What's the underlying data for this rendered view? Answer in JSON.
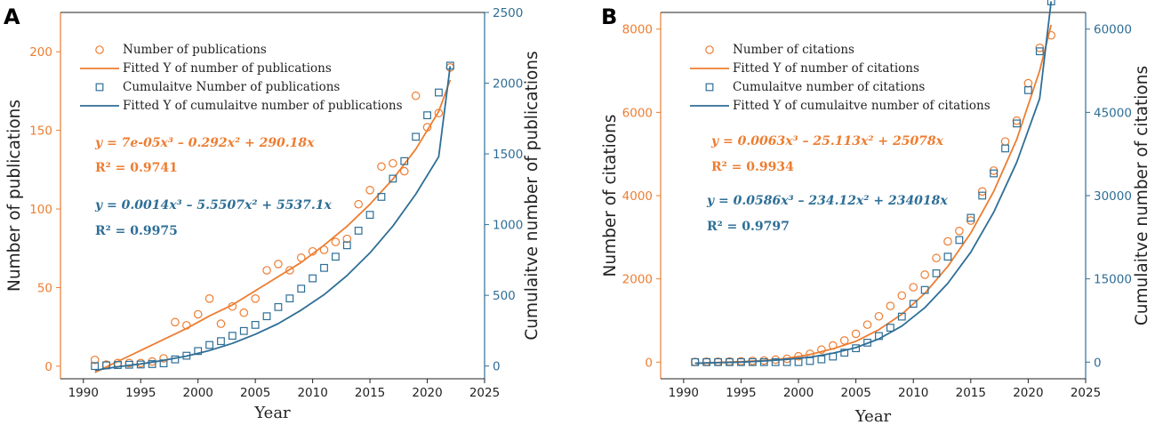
{
  "colors": {
    "orange": "#ED7D31",
    "blue": "#2E6E96",
    "axis": "#222222"
  },
  "chart_data": [
    {
      "panel": "A",
      "type": "scatter",
      "xlabel": "Year",
      "ylabel": "Number of publications",
      "ylabel_right": "Cumulaitve number of publications",
      "xlim": [
        1988,
        2025
      ],
      "ylim": [
        -8,
        225
      ],
      "ylim_right": [
        -90,
        2500
      ],
      "xticks": [
        1990,
        1995,
        2000,
        2005,
        2010,
        2015,
        2020,
        2025
      ],
      "yticks": [
        0,
        50,
        100,
        150,
        200
      ],
      "yticks_right": [
        0,
        500,
        1000,
        1500,
        2000,
        2500
      ],
      "legend": [
        "Number of publications",
        "Fitted Y of number of publications",
        "Cumulaitve Number of publications",
        "Fitted Y of cumulaitve number of publications"
      ],
      "eq_left": "y = 7e-05x³ – 0.292x² + 290.18x",
      "r2_left": "R² = 0.9741",
      "eq_right": "y = 0.0014x³ – 5.5507x² + 5537.1x",
      "r2_right": "R² = 0.9975",
      "series": [
        {
          "name": "Number of publications",
          "axis": "left",
          "marker": "circle",
          "x": [
            1991,
            1992,
            1993,
            1994,
            1995,
            1996,
            1997,
            1998,
            1999,
            2000,
            2001,
            2002,
            2003,
            2004,
            2005,
            2006,
            2007,
            2008,
            2009,
            2010,
            2011,
            2012,
            2013,
            2014,
            2015,
            2016,
            2017,
            2018,
            2019,
            2020,
            2021,
            2022
          ],
          "y": [
            4,
            1,
            2,
            2,
            2,
            3,
            5,
            28,
            26,
            33,
            43,
            27,
            38,
            34,
            43,
            61,
            65,
            61,
            69,
            73,
            74,
            79,
            81,
            103,
            112,
            127,
            129,
            124,
            172,
            152,
            161,
            190
          ]
        },
        {
          "name": "Fitted Y of number of publications",
          "axis": "left",
          "line": "solid",
          "x": [
            1991,
            1993,
            1995,
            1997,
            1999,
            2001,
            2003,
            2005,
            2007,
            2009,
            2011,
            2013,
            2015,
            2017,
            2019,
            2021,
            2022
          ],
          "y": [
            -4,
            3,
            10,
            17,
            24,
            32,
            39,
            48,
            57,
            66,
            77,
            89,
            103,
            119,
            138,
            162,
            182
          ]
        },
        {
          "name": "Cumulaitve Number of publications",
          "axis": "right",
          "marker": "square",
          "x": [
            1991,
            1992,
            1993,
            1994,
            1995,
            1996,
            1997,
            1998,
            1999,
            2000,
            2001,
            2002,
            2003,
            2004,
            2005,
            2006,
            2007,
            2008,
            2009,
            2010,
            2011,
            2012,
            2013,
            2014,
            2015,
            2016,
            2017,
            2018,
            2019,
            2020,
            2021,
            2022
          ],
          "y": [
            0,
            5,
            7,
            9,
            11,
            14,
            19,
            47,
            73,
            106,
            149,
            176,
            214,
            248,
            291,
            352,
            417,
            478,
            547,
            620,
            694,
            773,
            854,
            957,
            1069,
            1196,
            1325,
            1449,
            1621,
            1773,
            1934,
            2124
          ]
        },
        {
          "name": "Fitted Y of cumulaitve number of publications",
          "axis": "right",
          "line": "solid",
          "x": [
            1991,
            1993,
            1995,
            1997,
            1999,
            2001,
            2003,
            2005,
            2007,
            2009,
            2011,
            2013,
            2015,
            2017,
            2019,
            2021,
            2022
          ],
          "y": [
            -30,
            -5,
            15,
            40,
            70,
            110,
            160,
            225,
            300,
            395,
            505,
            640,
            800,
            990,
            1215,
            1480,
            2120
          ]
        }
      ]
    },
    {
      "panel": "B",
      "type": "scatter",
      "xlabel": "Year",
      "ylabel": "Number of citations",
      "ylabel_right": "Cumulaitve number of citations",
      "xlim": [
        1988,
        2025
      ],
      "ylim": [
        -400,
        8400
      ],
      "ylim_right": [
        -3000,
        63000
      ],
      "xticks": [
        1990,
        1995,
        2000,
        2005,
        2010,
        2015,
        2020,
        2025
      ],
      "yticks": [
        0,
        2000,
        4000,
        6000,
        8000
      ],
      "yticks_right": [
        0,
        15000,
        30000,
        45000,
        60000
      ],
      "legend": [
        "Number of citations",
        "Fitted Y of number of citations",
        "Cumulaitve number of citations",
        "Fitted Y of cumulaitve number of citations"
      ],
      "eq_left": "y = 0.0063x³ – 25.113x² + 25078x",
      "r2_left": "R² = 0.9934",
      "eq_right": "y = 0.0586x³ – 234.12x² + 234018x",
      "r2_right": "R² = 0.9797",
      "series": [
        {
          "name": "Number of citations",
          "axis": "left",
          "marker": "circle",
          "x": [
            1991,
            1992,
            1993,
            1994,
            1995,
            1996,
            1997,
            1998,
            1999,
            2000,
            2001,
            2002,
            2003,
            2004,
            2005,
            2006,
            2007,
            2008,
            2009,
            2010,
            2011,
            2012,
            2013,
            2014,
            2015,
            2016,
            2017,
            2018,
            2019,
            2020,
            2021,
            2022
          ],
          "y": [
            5,
            10,
            10,
            15,
            20,
            30,
            40,
            60,
            80,
            140,
            200,
            300,
            400,
            520,
            680,
            900,
            1100,
            1350,
            1600,
            1800,
            2100,
            2500,
            2900,
            3150,
            3400,
            4100,
            4600,
            5300,
            5800,
            6700,
            7550,
            7850
          ]
        },
        {
          "name": "Fitted Y of number of citations",
          "axis": "left",
          "line": "solid",
          "x": [
            1991,
            1993,
            1995,
            1997,
            1999,
            2001,
            2003,
            2005,
            2007,
            2009,
            2011,
            2013,
            2015,
            2017,
            2019,
            2021,
            2022
          ],
          "y": [
            -30,
            -10,
            10,
            40,
            90,
            180,
            320,
            500,
            780,
            1150,
            1650,
            2300,
            3100,
            4100,
            5350,
            7000,
            8100
          ]
        },
        {
          "name": "Cumulaitve number of citations",
          "axis": "right",
          "marker": "square",
          "x": [
            1991,
            1992,
            1993,
            1994,
            1995,
            1996,
            1997,
            1998,
            1999,
            2000,
            2001,
            2002,
            2003,
            2004,
            2005,
            2006,
            2007,
            2008,
            2009,
            2010,
            2011,
            2012,
            2013,
            2014,
            2015,
            2016,
            2017,
            2018,
            2019,
            2020,
            2021,
            2022
          ],
          "y": [
            0,
            0,
            0,
            0,
            0,
            0,
            0,
            0,
            0,
            0,
            200,
            500,
            1000,
            1700,
            2500,
            3500,
            4700,
            6200,
            8200,
            10500,
            13000,
            16000,
            19000,
            22000,
            26000,
            30000,
            34000,
            38500,
            43000,
            49000,
            56000,
            65000
          ]
        },
        {
          "name": "Fitted Y of cumulaitve number of citations",
          "axis": "right",
          "line": "solid",
          "x": [
            1991,
            1993,
            1995,
            1997,
            1999,
            2001,
            2003,
            2005,
            2007,
            2009,
            2011,
            2013,
            2015,
            2017,
            2019,
            2021,
            2022
          ],
          "y": [
            -200,
            -100,
            0,
            200,
            500,
            900,
            1600,
            2600,
            4200,
            6500,
            9800,
            14200,
            19800,
            27000,
            36000,
            47500,
            65000
          ]
        }
      ]
    }
  ]
}
